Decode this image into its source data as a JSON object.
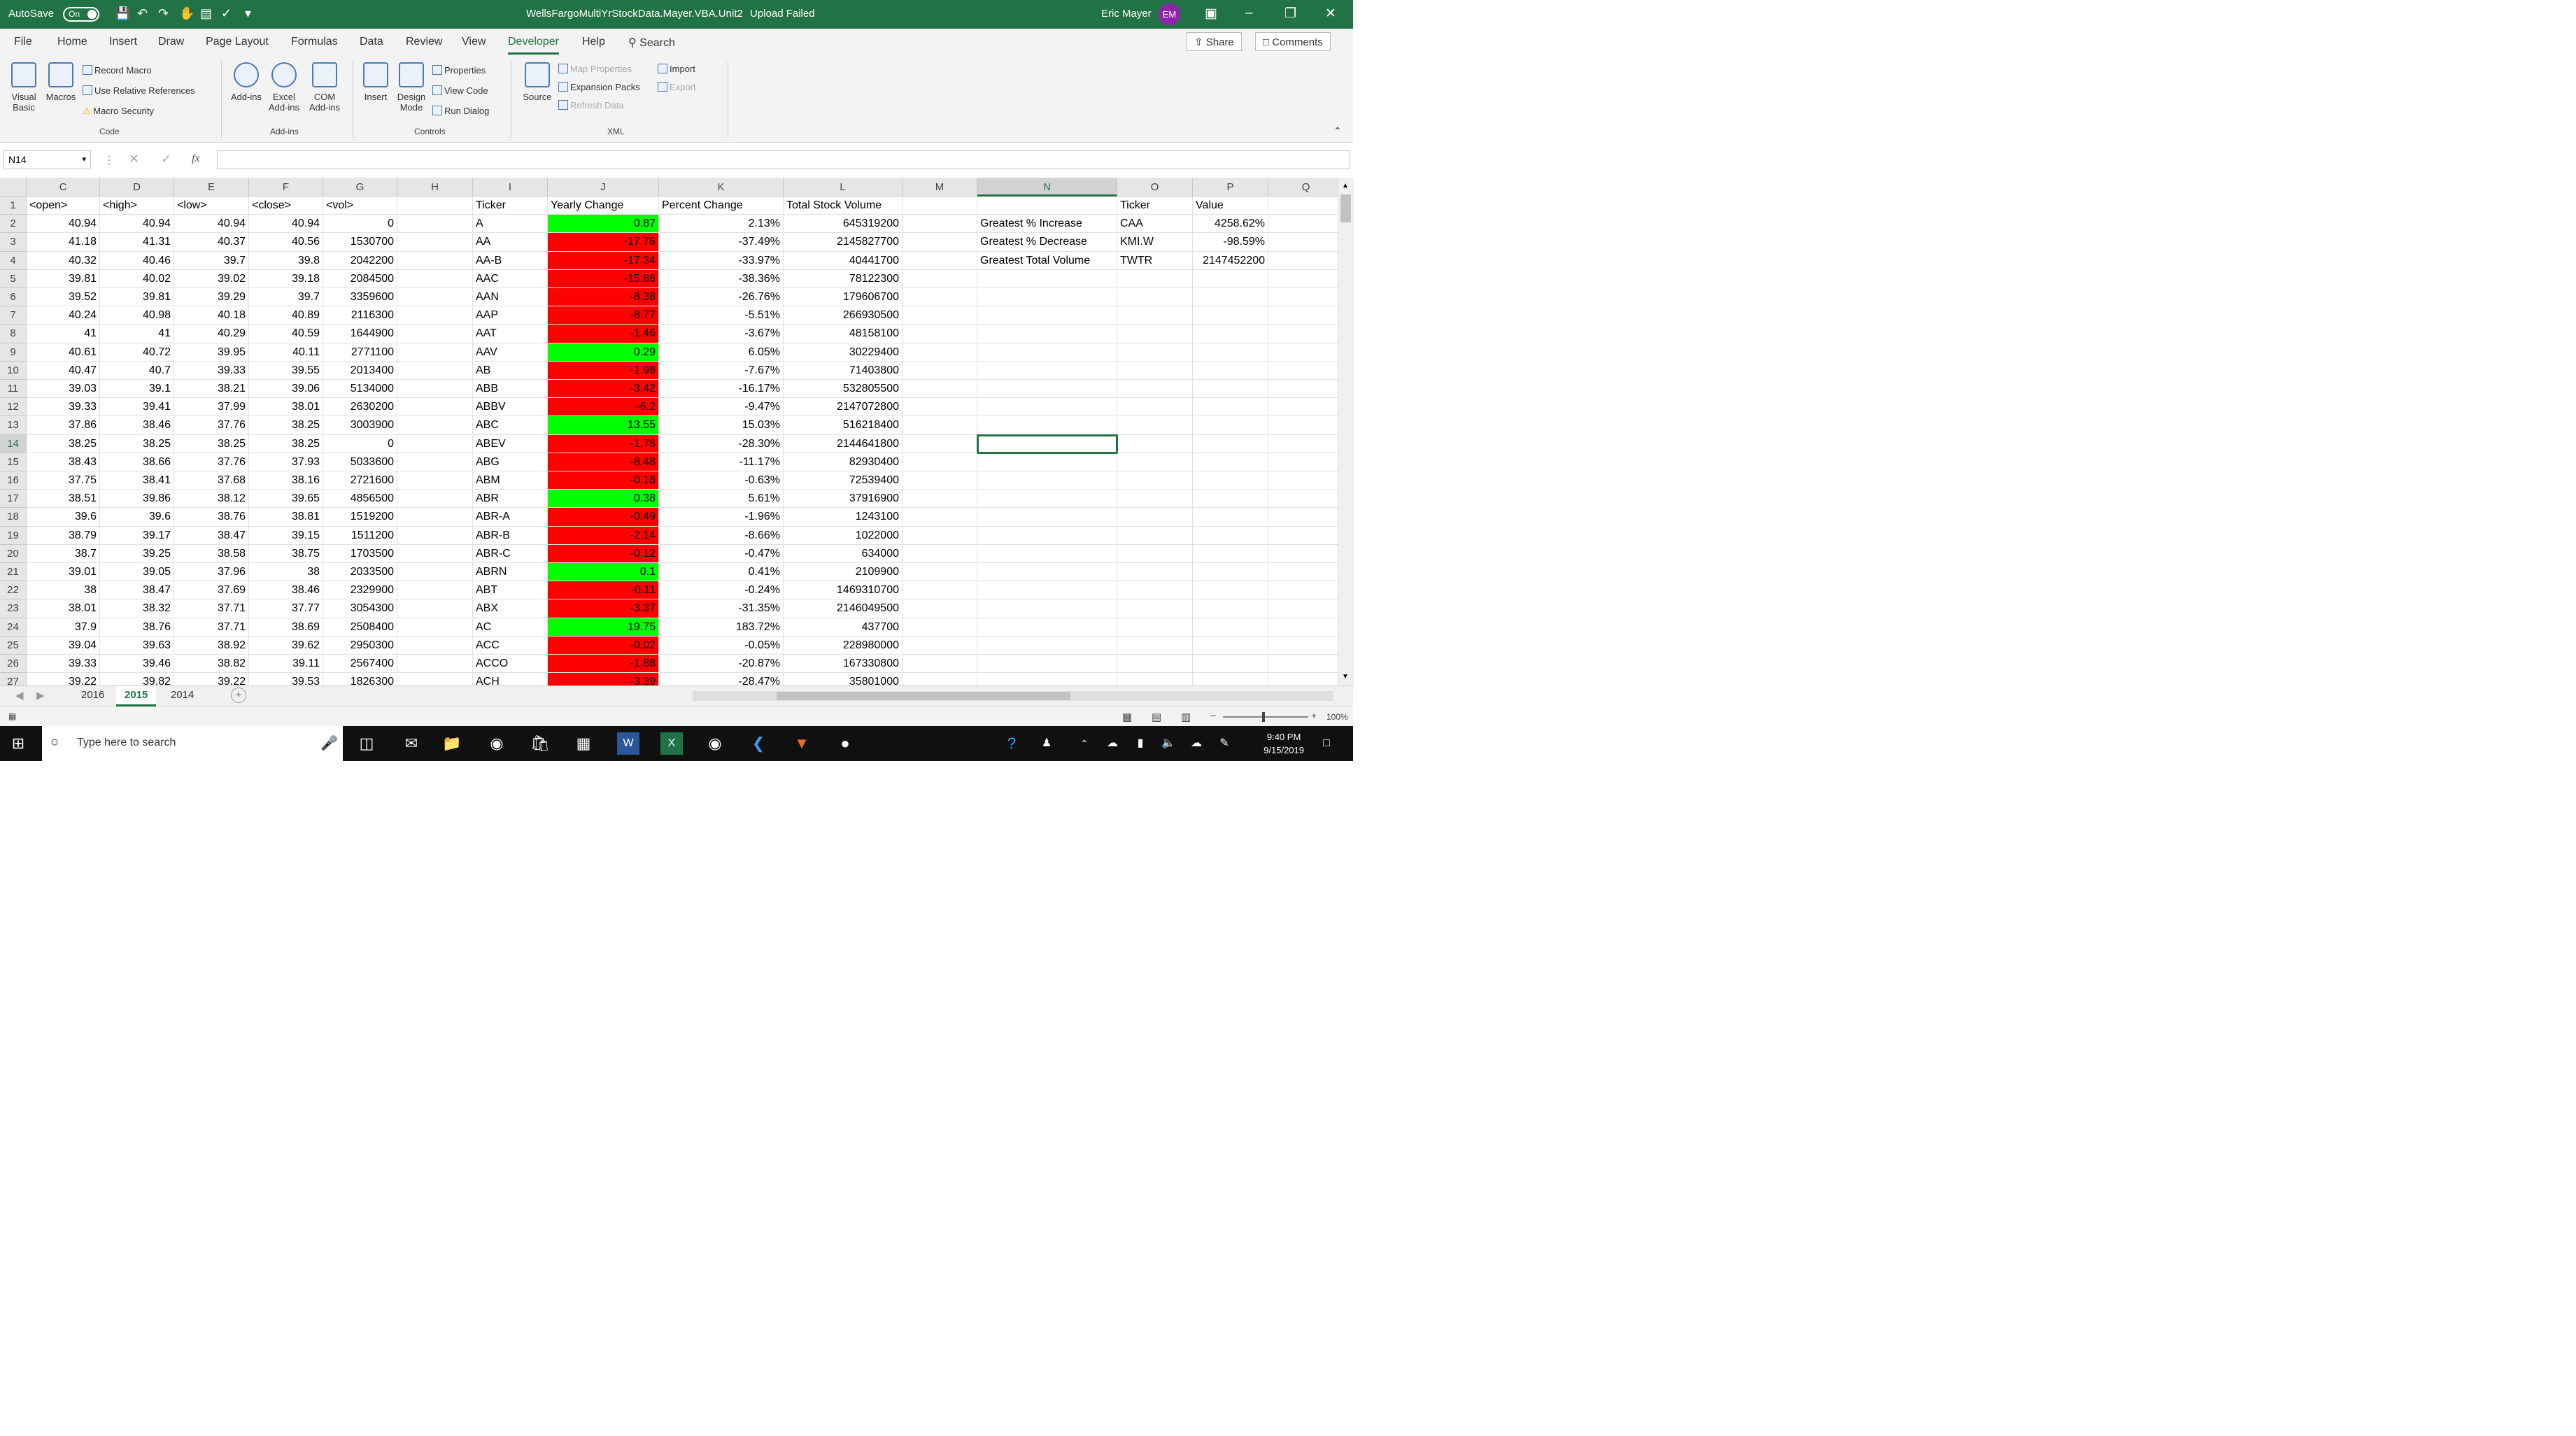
{
  "titlebar": {
    "autosave_label": "AutoSave",
    "autosave_state": "On",
    "document_title": "WellsFargoMultiYrStockData.Mayer.VBA.Unit2",
    "upload_status": "Upload Failed",
    "user_name": "Eric Mayer",
    "user_initials": "EM"
  },
  "menu": {
    "items": [
      "File",
      "Home",
      "Insert",
      "Draw",
      "Page Layout",
      "Formulas",
      "Data",
      "Review",
      "View",
      "Developer",
      "Help"
    ],
    "active": "Developer",
    "search_label": "Search",
    "share_label": "Share",
    "comments_label": "Comments"
  },
  "ribbon": {
    "visual_basic": "Visual Basic",
    "macros": "Macros",
    "record_macro": "Record Macro",
    "use_relative_references": "Use Relative References",
    "macro_security": "Macro Security",
    "group_code": "Code",
    "add_ins": "Add-ins",
    "excel_add_ins": "Excel Add-ins",
    "com_add_ins": "COM Add-ins",
    "group_add_ins": "Add-ins",
    "insert": "Insert",
    "design_mode": "Design Mode",
    "properties": "Properties",
    "view_code": "View Code",
    "run_dialog": "Run Dialog",
    "group_controls": "Controls",
    "source": "Source",
    "map_properties": "Map Properties",
    "expansion_packs": "Expansion Packs",
    "refresh_data": "Refresh Data",
    "import": "Import",
    "export": "Export",
    "group_xml": "XML"
  },
  "formula_bar": {
    "name_box": "N14",
    "fx": "fx",
    "value": ""
  },
  "columns": [
    "C",
    "D",
    "E",
    "F",
    "G",
    "H",
    "I",
    "J",
    "K",
    "L",
    "M",
    "N",
    "O",
    "P",
    "Q"
  ],
  "selected_column": "N",
  "selected_row": 14,
  "header_row": {
    "C": "<open>",
    "D": "<high>",
    "E": "<low>",
    "F": "<close>",
    "G": "<vol>",
    "I": "Ticker",
    "J": "Yearly Change",
    "K": "Percent Change",
    "L": "Total Stock Volume",
    "O": "Ticker",
    "P": "Value"
  },
  "rows": [
    {
      "r": 2,
      "C": "40.94",
      "D": "40.94",
      "E": "40.94",
      "F": "40.94",
      "G": "0",
      "I": "A",
      "J": "0.87",
      "K": "2.13%",
      "L": "645319200"
    },
    {
      "r": 3,
      "C": "41.18",
      "D": "41.31",
      "E": "40.37",
      "F": "40.56",
      "G": "1530700",
      "I": "AA",
      "J": "-17.76",
      "K": "-37.49%",
      "L": "2145827700"
    },
    {
      "r": 4,
      "C": "40.32",
      "D": "40.46",
      "E": "39.7",
      "F": "39.8",
      "G": "2042200",
      "I": "AA-B",
      "J": "-17.34",
      "K": "-33.97%",
      "L": "40441700"
    },
    {
      "r": 5,
      "C": "39.81",
      "D": "40.02",
      "E": "39.02",
      "F": "39.18",
      "G": "2084500",
      "I": "AAC",
      "J": "-15.86",
      "K": "-38.36%",
      "L": "78122300"
    },
    {
      "r": 6,
      "C": "39.52",
      "D": "39.81",
      "E": "39.29",
      "F": "39.7",
      "G": "3359600",
      "I": "AAN",
      "J": "-8.38",
      "K": "-26.76%",
      "L": "179606700"
    },
    {
      "r": 7,
      "C": "40.24",
      "D": "40.98",
      "E": "40.18",
      "F": "40.89",
      "G": "2116300",
      "I": "AAP",
      "J": "-8.77",
      "K": "-5.51%",
      "L": "266930500"
    },
    {
      "r": 8,
      "C": "41",
      "D": "41",
      "E": "40.29",
      "F": "40.59",
      "G": "1644900",
      "I": "AAT",
      "J": "-1.46",
      "K": "-3.67%",
      "L": "48158100"
    },
    {
      "r": 9,
      "C": "40.61",
      "D": "40.72",
      "E": "39.95",
      "F": "40.11",
      "G": "2771100",
      "I": "AAV",
      "J": "0.29",
      "K": "6.05%",
      "L": "30229400"
    },
    {
      "r": 10,
      "C": "40.47",
      "D": "40.7",
      "E": "39.33",
      "F": "39.55",
      "G": "2013400",
      "I": "AB",
      "J": "-1.98",
      "K": "-7.67%",
      "L": "71403800"
    },
    {
      "r": 11,
      "C": "39.03",
      "D": "39.1",
      "E": "38.21",
      "F": "39.06",
      "G": "5134000",
      "I": "ABB",
      "J": "-3.42",
      "K": "-16.17%",
      "L": "532805500"
    },
    {
      "r": 12,
      "C": "39.33",
      "D": "39.41",
      "E": "37.99",
      "F": "38.01",
      "G": "2630200",
      "I": "ABBV",
      "J": "-6.2",
      "K": "-9.47%",
      "L": "2147072800"
    },
    {
      "r": 13,
      "C": "37.86",
      "D": "38.46",
      "E": "37.76",
      "F": "38.25",
      "G": "3003900",
      "I": "ABC",
      "J": "13.55",
      "K": "15.03%",
      "L": "516218400"
    },
    {
      "r": 14,
      "C": "38.25",
      "D": "38.25",
      "E": "38.25",
      "F": "38.25",
      "G": "0",
      "I": "ABEV",
      "J": "-1.76",
      "K": "-28.30%",
      "L": "2144641800"
    },
    {
      "r": 15,
      "C": "38.43",
      "D": "38.66",
      "E": "37.76",
      "F": "37.93",
      "G": "5033600",
      "I": "ABG",
      "J": "-8.48",
      "K": "-11.17%",
      "L": "82930400"
    },
    {
      "r": 16,
      "C": "37.75",
      "D": "38.41",
      "E": "37.68",
      "F": "38.16",
      "G": "2721600",
      "I": "ABM",
      "J": "-0.18",
      "K": "-0.63%",
      "L": "72539400"
    },
    {
      "r": 17,
      "C": "38.51",
      "D": "39.86",
      "E": "38.12",
      "F": "39.65",
      "G": "4856500",
      "I": "ABR",
      "J": "0.38",
      "K": "5.61%",
      "L": "37916900"
    },
    {
      "r": 18,
      "C": "39.6",
      "D": "39.6",
      "E": "38.76",
      "F": "38.81",
      "G": "1519200",
      "I": "ABR-A",
      "J": "-0.49",
      "K": "-1.96%",
      "L": "1243100"
    },
    {
      "r": 19,
      "C": "38.79",
      "D": "39.17",
      "E": "38.47",
      "F": "39.15",
      "G": "1511200",
      "I": "ABR-B",
      "J": "-2.14",
      "K": "-8.66%",
      "L": "1022000"
    },
    {
      "r": 20,
      "C": "38.7",
      "D": "39.25",
      "E": "38.58",
      "F": "38.75",
      "G": "1703500",
      "I": "ABR-C",
      "J": "-0.12",
      "K": "-0.47%",
      "L": "634000"
    },
    {
      "r": 21,
      "C": "39.01",
      "D": "39.05",
      "E": "37.96",
      "F": "38",
      "G": "2033500",
      "I": "ABRN",
      "J": "0.1",
      "K": "0.41%",
      "L": "2109900"
    },
    {
      "r": 22,
      "C": "38",
      "D": "38.47",
      "E": "37.69",
      "F": "38.46",
      "G": "2329900",
      "I": "ABT",
      "J": "-0.11",
      "K": "-0.24%",
      "L": "1469310700"
    },
    {
      "r": 23,
      "C": "38.01",
      "D": "38.32",
      "E": "37.71",
      "F": "37.77",
      "G": "3054300",
      "I": "ABX",
      "J": "-3.37",
      "K": "-31.35%",
      "L": "2146049500"
    },
    {
      "r": 24,
      "C": "37.9",
      "D": "38.76",
      "E": "37.71",
      "F": "38.69",
      "G": "2508400",
      "I": "AC",
      "J": "19.75",
      "K": "183.72%",
      "L": "437700"
    },
    {
      "r": 25,
      "C": "39.04",
      "D": "39.63",
      "E": "38.92",
      "F": "39.62",
      "G": "2950300",
      "I": "ACC",
      "J": "-0.02",
      "K": "-0.05%",
      "L": "228980000"
    },
    {
      "r": 26,
      "C": "39.33",
      "D": "39.46",
      "E": "38.82",
      "F": "39.11",
      "G": "2567400",
      "I": "ACCO",
      "J": "-1.88",
      "K": "-20.87%",
      "L": "167330800"
    },
    {
      "r": 27,
      "C": "39.22",
      "D": "39.82",
      "E": "39.22",
      "F": "39.53",
      "G": "1826300",
      "I": "ACH",
      "J": "-3.39",
      "K": "-28.47%",
      "L": "35801000"
    }
  ],
  "summary": [
    {
      "r": 2,
      "N": "Greatest % Increase",
      "O": "CAA",
      "P": "4258.62%"
    },
    {
      "r": 3,
      "N": "Greatest % Decrease",
      "O": "KMI.W",
      "P": "-98.59%"
    },
    {
      "r": 4,
      "N": "Greatest Total Volume",
      "O": "TWTR",
      "P": "2147452200"
    }
  ],
  "sheet_tabs": [
    "2016",
    "2015",
    "2014"
  ],
  "active_sheet": "2015",
  "status": {
    "zoom": "100%"
  },
  "taskbar": {
    "search_placeholder": "Type here to search",
    "time": "9:40 PM",
    "date": "9/15/2019"
  },
  "colors": {
    "excel_green": "#217346",
    "positive": "#00ff00",
    "negative": "#ff0000"
  }
}
